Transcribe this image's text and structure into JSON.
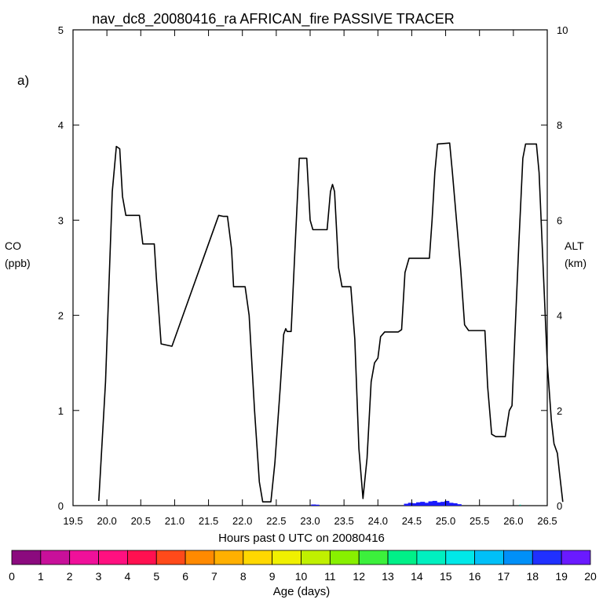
{
  "chart_data": {
    "type": "line",
    "title": "nav_dc8_20080416_ra AFRICAN_fire PASSIVE TRACER",
    "panel_label": "a)",
    "xlabel": "Hours past 0 UTC on 20080416",
    "ylabel_left": [
      "CO",
      "(ppb)"
    ],
    "ylabel_right": [
      "ALT",
      "(km)"
    ],
    "xlim": [
      19.5,
      26.5
    ],
    "ylim_left": [
      0,
      5
    ],
    "ylim_right": [
      0,
      10
    ],
    "x_ticks": [
      "19.5",
      "20.0",
      "20.5",
      "21.0",
      "21.5",
      "22.0",
      "22.5",
      "23.0",
      "23.5",
      "24.0",
      "24.5",
      "25.0",
      "25.5",
      "26.0",
      "26.5"
    ],
    "y_ticks_left": [
      "0",
      "1",
      "2",
      "3",
      "4",
      "5"
    ],
    "y_ticks_right": [
      "0",
      "2",
      "4",
      "6",
      "8",
      "10"
    ],
    "grid": false,
    "series": [
      {
        "axis": "right",
        "color": "#000000",
        "points": [
          [
            19.88,
            0.1
          ],
          [
            19.98,
            2.6
          ],
          [
            20.08,
            6.6
          ],
          [
            20.14,
            7.55
          ],
          [
            20.19,
            7.5
          ],
          [
            20.23,
            6.5
          ],
          [
            20.28,
            6.1
          ],
          [
            20.34,
            6.1
          ],
          [
            20.48,
            6.1
          ],
          [
            20.53,
            5.5
          ],
          [
            20.58,
            5.5
          ],
          [
            20.7,
            5.5
          ],
          [
            20.73,
            4.8
          ],
          [
            20.8,
            3.4
          ],
          [
            20.96,
            3.35
          ],
          [
            21.65,
            6.1
          ],
          [
            21.72,
            6.08
          ],
          [
            21.78,
            6.08
          ],
          [
            21.84,
            5.4
          ],
          [
            21.87,
            4.6
          ],
          [
            22.04,
            4.6
          ],
          [
            22.1,
            4.0
          ],
          [
            22.18,
            2.0
          ],
          [
            22.25,
            0.5
          ],
          [
            22.3,
            0.08
          ],
          [
            22.42,
            0.08
          ],
          [
            22.48,
            0.9
          ],
          [
            22.56,
            2.5
          ],
          [
            22.61,
            3.6
          ],
          [
            22.64,
            3.72
          ],
          [
            22.66,
            3.66
          ],
          [
            22.72,
            3.66
          ],
          [
            22.78,
            5.5
          ],
          [
            22.84,
            7.3
          ],
          [
            22.95,
            7.3
          ],
          [
            23.0,
            6.0
          ],
          [
            23.04,
            5.8
          ],
          [
            23.25,
            5.8
          ],
          [
            23.3,
            6.6
          ],
          [
            23.33,
            6.75
          ],
          [
            23.36,
            6.6
          ],
          [
            23.42,
            5.0
          ],
          [
            23.47,
            4.6
          ],
          [
            23.6,
            4.6
          ],
          [
            23.66,
            3.5
          ],
          [
            23.72,
            1.2
          ],
          [
            23.78,
            0.15
          ],
          [
            23.84,
            1.0
          ],
          [
            23.9,
            2.6
          ],
          [
            23.95,
            3.0
          ],
          [
            24.0,
            3.1
          ],
          [
            24.04,
            3.55
          ],
          [
            24.1,
            3.65
          ],
          [
            24.3,
            3.65
          ],
          [
            24.35,
            3.7
          ],
          [
            24.4,
            4.9
          ],
          [
            24.46,
            5.2
          ],
          [
            24.76,
            5.2
          ],
          [
            24.8,
            6.0
          ],
          [
            24.84,
            7.0
          ],
          [
            24.88,
            7.6
          ],
          [
            25.06,
            7.62
          ],
          [
            25.1,
            7.0
          ],
          [
            25.16,
            6.0
          ],
          [
            25.22,
            5.0
          ],
          [
            25.28,
            3.8
          ],
          [
            25.34,
            3.68
          ],
          [
            25.58,
            3.68
          ],
          [
            25.62,
            2.5
          ],
          [
            25.68,
            1.5
          ],
          [
            25.74,
            1.45
          ],
          [
            25.88,
            1.45
          ],
          [
            25.94,
            2.0
          ],
          [
            25.98,
            2.1
          ],
          [
            26.02,
            3.5
          ],
          [
            26.08,
            5.5
          ],
          [
            26.14,
            7.3
          ],
          [
            26.18,
            7.6
          ],
          [
            26.34,
            7.6
          ],
          [
            26.38,
            7.0
          ],
          [
            26.44,
            5.0
          ],
          [
            26.5,
            3.0
          ],
          [
            26.56,
            1.8
          ],
          [
            26.6,
            1.3
          ],
          [
            26.65,
            1.1
          ],
          [
            26.68,
            0.7
          ],
          [
            26.73,
            0.08
          ]
        ]
      }
    ],
    "tracer_bars": {
      "axis": "left",
      "color": "#1a1aff",
      "points": [
        [
          23.05,
          0.012
        ],
        [
          23.1,
          0.01
        ],
        [
          24.42,
          0.02
        ],
        [
          24.48,
          0.03
        ],
        [
          24.54,
          0.025
        ],
        [
          24.6,
          0.035
        ],
        [
          24.66,
          0.04
        ],
        [
          24.72,
          0.03
        ],
        [
          24.78,
          0.045
        ],
        [
          24.84,
          0.05
        ],
        [
          24.9,
          0.035
        ],
        [
          24.96,
          0.04
        ],
        [
          25.02,
          0.05
        ],
        [
          25.08,
          0.03
        ],
        [
          25.14,
          0.025
        ],
        [
          25.2,
          0.015
        ]
      ],
      "extra_marks": [
        {
          "x": 26.1,
          "y": 0.01,
          "color": "#00b08a"
        }
      ]
    },
    "colorbar": {
      "label": "Age (days)",
      "ticks": [
        "0",
        "1",
        "2",
        "3",
        "4",
        "5",
        "6",
        "7",
        "8",
        "9",
        "10",
        "11",
        "12",
        "13",
        "14",
        "15",
        "16",
        "17",
        "18",
        "19",
        "20"
      ],
      "colors": [
        "#8b0a7e",
        "#c8109a",
        "#f0109a",
        "#ff1080",
        "#ff1050",
        "#ff4a1a",
        "#ff8a00",
        "#ffb000",
        "#ffd800",
        "#f0f000",
        "#c0f000",
        "#88f000",
        "#3cf03c",
        "#00f088",
        "#00f0c0",
        "#00e8e8",
        "#00c0f8",
        "#0090f8",
        "#2030ff",
        "#6a1aff"
      ]
    }
  }
}
